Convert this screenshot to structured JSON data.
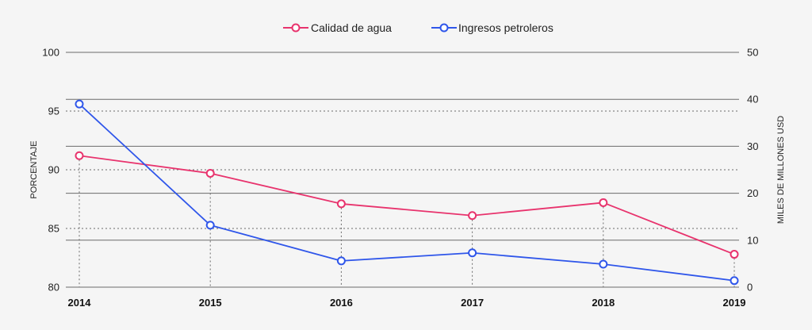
{
  "chart_data": {
    "type": "line",
    "title": "",
    "xlabel": "",
    "ylabel": "PORCENTAJE",
    "y2label": "MILES DE MILLONES USD",
    "categories": [
      "2014",
      "2015",
      "2016",
      "2017",
      "2018",
      "2019"
    ],
    "ylim": [
      80,
      100
    ],
    "y2lim": [
      0,
      50
    ],
    "yticks": [
      80,
      85,
      90,
      95,
      100
    ],
    "y2ticks": [
      0,
      10,
      20,
      30,
      40,
      50
    ],
    "legend_position": "top-center",
    "grid": true,
    "series": [
      {
        "name": "Calidad de agua",
        "axis": "left",
        "color": "#e8336d",
        "values": [
          91.2,
          89.7,
          87.1,
          86.1,
          87.2,
          82.8
        ]
      },
      {
        "name": "Ingresos petroleros",
        "axis": "right",
        "color": "#2f56ea",
        "values": [
          39.0,
          13.2,
          5.6,
          7.3,
          4.9,
          1.4
        ]
      }
    ]
  }
}
